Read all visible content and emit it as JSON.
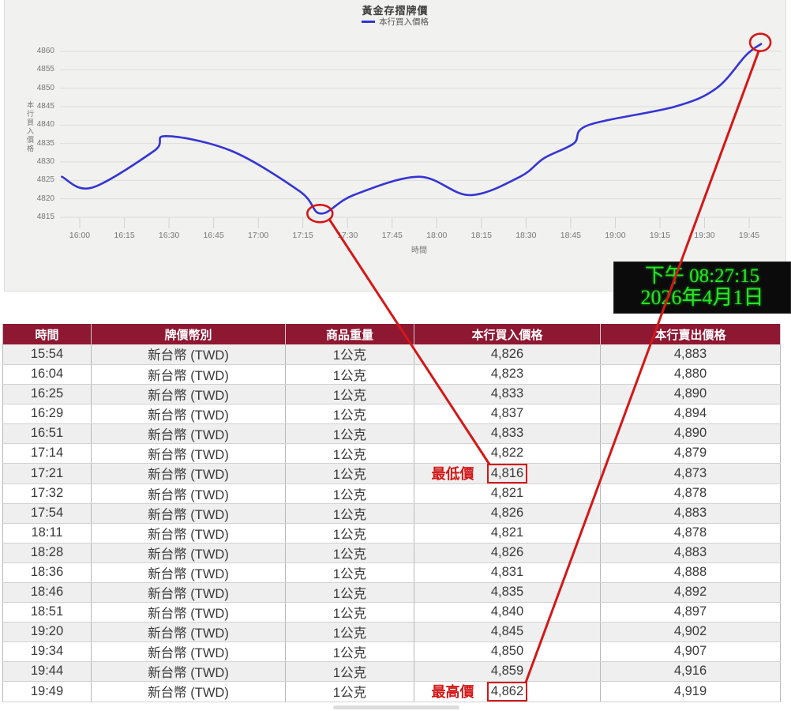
{
  "chart_data": {
    "type": "line",
    "title": "黃金存摺牌價",
    "legend": "本行買入價格",
    "xlabel": "時間",
    "ylabel": "本行買入價格",
    "line_color": "#3535d3",
    "grid": true,
    "legend_position": "top",
    "ylim": [
      4813,
      4863
    ],
    "y_ticks": [
      4815,
      4820,
      4825,
      4830,
      4835,
      4840,
      4845,
      4850,
      4855,
      4860
    ],
    "x_tick_labels": [
      "16:00",
      "16:15",
      "16:30",
      "16:45",
      "17:00",
      "17:15",
      "17:30",
      "17:45",
      "18:00",
      "18:15",
      "18:30",
      "18:45",
      "19:00",
      "19:15",
      "19:30",
      "19:45"
    ],
    "series": [
      {
        "name": "本行買入價格",
        "x": [
          "15:54",
          "16:04",
          "16:25",
          "16:29",
          "16:51",
          "17:14",
          "17:21",
          "17:32",
          "17:54",
          "18:11",
          "18:28",
          "18:36",
          "18:46",
          "18:51",
          "19:20",
          "19:34",
          "19:44",
          "19:49"
        ],
        "values": [
          4826,
          4823,
          4833,
          4837,
          4833,
          4822,
          4816,
          4821,
          4826,
          4821,
          4826,
          4831,
          4835,
          4840,
          4845,
          4850,
          4859,
          4862
        ]
      }
    ]
  },
  "clock": {
    "time_line": "下午 08:27:15",
    "date_line": "2026年4月1日",
    "text_color": "#25e625",
    "bg_color": "#0b0b0b"
  },
  "table": {
    "header_bg": "#8e1732",
    "headers": [
      "時間",
      "牌價幣別",
      "商品重量",
      "本行買入價格",
      "本行賣出價格"
    ],
    "rows": [
      {
        "time": "15:54",
        "currency": "新台幣 (TWD)",
        "weight": "1公克",
        "buy": "4,826",
        "sell": "4,883"
      },
      {
        "time": "16:04",
        "currency": "新台幣 (TWD)",
        "weight": "1公克",
        "buy": "4,823",
        "sell": "4,880"
      },
      {
        "time": "16:25",
        "currency": "新台幣 (TWD)",
        "weight": "1公克",
        "buy": "4,833",
        "sell": "4,890"
      },
      {
        "time": "16:29",
        "currency": "新台幣 (TWD)",
        "weight": "1公克",
        "buy": "4,837",
        "sell": "4,894"
      },
      {
        "time": "16:51",
        "currency": "新台幣 (TWD)",
        "weight": "1公克",
        "buy": "4,833",
        "sell": "4,890"
      },
      {
        "time": "17:14",
        "currency": "新台幣 (TWD)",
        "weight": "1公克",
        "buy": "4,822",
        "sell": "4,879"
      },
      {
        "time": "17:21",
        "currency": "新台幣 (TWD)",
        "weight": "1公克",
        "buy": "4,816",
        "sell": "4,873"
      },
      {
        "time": "17:32",
        "currency": "新台幣 (TWD)",
        "weight": "1公克",
        "buy": "4,821",
        "sell": "4,878"
      },
      {
        "time": "17:54",
        "currency": "新台幣 (TWD)",
        "weight": "1公克",
        "buy": "4,826",
        "sell": "4,883"
      },
      {
        "time": "18:11",
        "currency": "新台幣 (TWD)",
        "weight": "1公克",
        "buy": "4,821",
        "sell": "4,878"
      },
      {
        "time": "18:28",
        "currency": "新台幣 (TWD)",
        "weight": "1公克",
        "buy": "4,826",
        "sell": "4,883"
      },
      {
        "time": "18:36",
        "currency": "新台幣 (TWD)",
        "weight": "1公克",
        "buy": "4,831",
        "sell": "4,888"
      },
      {
        "time": "18:46",
        "currency": "新台幣 (TWD)",
        "weight": "1公克",
        "buy": "4,835",
        "sell": "4,892"
      },
      {
        "time": "18:51",
        "currency": "新台幣 (TWD)",
        "weight": "1公克",
        "buy": "4,840",
        "sell": "4,897"
      },
      {
        "time": "19:20",
        "currency": "新台幣 (TWD)",
        "weight": "1公克",
        "buy": "4,845",
        "sell": "4,902"
      },
      {
        "time": "19:34",
        "currency": "新台幣 (TWD)",
        "weight": "1公克",
        "buy": "4,850",
        "sell": "4,907"
      },
      {
        "time": "19:44",
        "currency": "新台幣 (TWD)",
        "weight": "1公克",
        "buy": "4,859",
        "sell": "4,916"
      },
      {
        "time": "19:49",
        "currency": "新台幣 (TWD)",
        "weight": "1公克",
        "buy": "4,862",
        "sell": "4,919"
      }
    ]
  },
  "annotations": {
    "color": "#d41717",
    "lowest": {
      "time": "17:21",
      "label": "最低價",
      "value": "4,816"
    },
    "highest": {
      "time": "19:49",
      "label": "最高價",
      "value": "4,862"
    }
  }
}
